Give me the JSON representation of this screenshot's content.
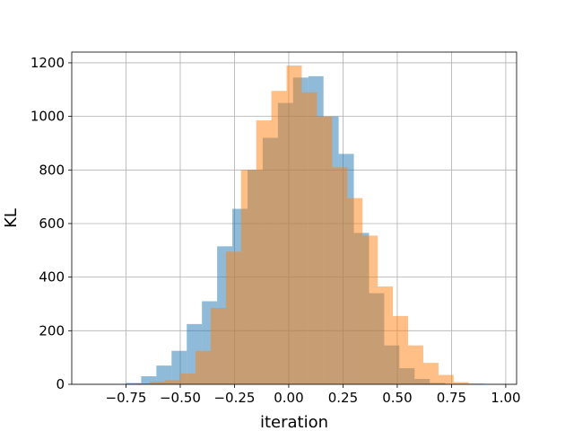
{
  "chart_data": {
    "type": "histogram",
    "title": "",
    "xlabel": "iteration",
    "ylabel": "KL",
    "xlim": [
      -1.0,
      1.05
    ],
    "ylim": [
      0,
      1240
    ],
    "grid": true,
    "x_ticks": [
      -0.75,
      -0.5,
      -0.25,
      0.0,
      0.25,
      0.5,
      0.75,
      1.0
    ],
    "x_tick_labels": [
      "−0.75",
      "−0.50",
      "−0.25",
      "0.00",
      "0.25",
      "0.50",
      "0.75",
      "1.00"
    ],
    "y_ticks": [
      0,
      200,
      400,
      600,
      800,
      1000,
      1200
    ],
    "y_tick_labels": [
      "0",
      "200",
      "400",
      "600",
      "800",
      "1000",
      "1200"
    ],
    "series": [
      {
        "color": "#1f77b4",
        "opacity": 0.5,
        "bins": [
          {
            "x0": -0.75,
            "x1": -0.68,
            "count": 5
          },
          {
            "x0": -0.68,
            "x1": -0.61,
            "count": 30
          },
          {
            "x0": -0.61,
            "x1": -0.54,
            "count": 70
          },
          {
            "x0": -0.54,
            "x1": -0.47,
            "count": 125
          },
          {
            "x0": -0.47,
            "x1": -0.4,
            "count": 225
          },
          {
            "x0": -0.4,
            "x1": -0.33,
            "count": 310
          },
          {
            "x0": -0.33,
            "x1": -0.26,
            "count": 515
          },
          {
            "x0": -0.26,
            "x1": -0.19,
            "count": 655
          },
          {
            "x0": -0.19,
            "x1": -0.12,
            "count": 800
          },
          {
            "x0": -0.12,
            "x1": -0.05,
            "count": 920
          },
          {
            "x0": -0.05,
            "x1": 0.02,
            "count": 1050
          },
          {
            "x0": 0.02,
            "x1": 0.09,
            "count": 1145
          },
          {
            "x0": 0.09,
            "x1": 0.16,
            "count": 1150
          },
          {
            "x0": 0.16,
            "x1": 0.23,
            "count": 1000
          },
          {
            "x0": 0.23,
            "x1": 0.3,
            "count": 860
          },
          {
            "x0": 0.3,
            "x1": 0.37,
            "count": 565
          },
          {
            "x0": 0.37,
            "x1": 0.44,
            "count": 340
          },
          {
            "x0": 0.44,
            "x1": 0.51,
            "count": 145
          },
          {
            "x0": 0.51,
            "x1": 0.58,
            "count": 60
          },
          {
            "x0": 0.58,
            "x1": 0.65,
            "count": 20
          },
          {
            "x0": 0.65,
            "x1": 0.72,
            "count": 5
          }
        ]
      },
      {
        "color": "#ff7f0e",
        "opacity": 0.5,
        "bins": [
          {
            "x0": -0.71,
            "x1": -0.64,
            "count": 3
          },
          {
            "x0": -0.64,
            "x1": -0.57,
            "count": 10
          },
          {
            "x0": -0.57,
            "x1": -0.5,
            "count": 15
          },
          {
            "x0": -0.5,
            "x1": -0.43,
            "count": 40
          },
          {
            "x0": -0.43,
            "x1": -0.36,
            "count": 125
          },
          {
            "x0": -0.36,
            "x1": -0.29,
            "count": 285
          },
          {
            "x0": -0.29,
            "x1": -0.22,
            "count": 495
          },
          {
            "x0": -0.22,
            "x1": -0.15,
            "count": 800
          },
          {
            "x0": -0.15,
            "x1": -0.08,
            "count": 985
          },
          {
            "x0": -0.08,
            "x1": -0.01,
            "count": 1095
          },
          {
            "x0": -0.01,
            "x1": 0.06,
            "count": 1190
          },
          {
            "x0": 0.06,
            "x1": 0.13,
            "count": 1090
          },
          {
            "x0": 0.13,
            "x1": 0.2,
            "count": 1000
          },
          {
            "x0": 0.2,
            "x1": 0.27,
            "count": 810
          },
          {
            "x0": 0.27,
            "x1": 0.34,
            "count": 695
          },
          {
            "x0": 0.34,
            "x1": 0.41,
            "count": 555
          },
          {
            "x0": 0.41,
            "x1": 0.48,
            "count": 365
          },
          {
            "x0": 0.48,
            "x1": 0.55,
            "count": 255
          },
          {
            "x0": 0.55,
            "x1": 0.62,
            "count": 145
          },
          {
            "x0": 0.62,
            "x1": 0.69,
            "count": 80
          },
          {
            "x0": 0.69,
            "x1": 0.76,
            "count": 35
          },
          {
            "x0": 0.76,
            "x1": 0.83,
            "count": 8
          },
          {
            "x0": 0.83,
            "x1": 0.9,
            "count": 3
          }
        ]
      }
    ]
  }
}
